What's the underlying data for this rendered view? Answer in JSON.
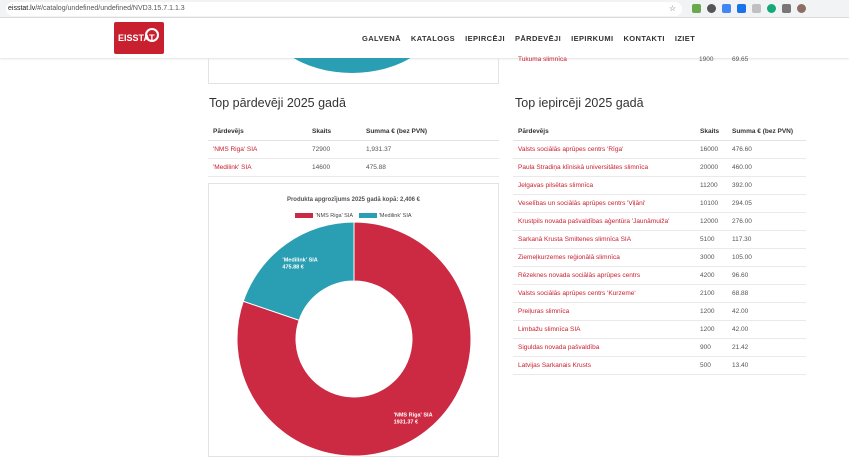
{
  "browser": {
    "url_host": "eisstat.lv",
    "url_path": "/#/catalog/undefined/undefined/NVD3.15.7.1.1.3"
  },
  "site": {
    "logo_text": "EISSTAT",
    "nav": [
      "GALVENĀ",
      "KATALOGS",
      "IEPIRCĒJI",
      "PĀRDEVĒJI",
      "IEPIRKUMI",
      "KONTAKTI",
      "IZIET"
    ]
  },
  "top_row": {
    "name": "Tukuma slimnīca",
    "count": "1900",
    "sum": "69.65"
  },
  "sellers": {
    "title": "Top pārdevēji 2025 gadā",
    "headers": [
      "Pārdevējs",
      "Skaits",
      "Summa € (bez PVN)"
    ],
    "rows": [
      [
        "'NMS Riga' SIA",
        "72900",
        "1,931.37"
      ],
      [
        "'Medilink' SIA",
        "14600",
        "475.88"
      ]
    ]
  },
  "buyers": {
    "title": "Top iepircēji 2025 gadā",
    "headers": [
      "Pārdevējs",
      "Skaits",
      "Summa € (bez PVN)"
    ],
    "rows": [
      [
        "Valsts sociālās aprūpes centrs 'Rīga'",
        "16000",
        "476.60"
      ],
      [
        "Paula Stradiņa klīniskā universitātes slimnīca",
        "20000",
        "460.00"
      ],
      [
        "Jelgavas pilsētas slimnīca",
        "11200",
        "392.00"
      ],
      [
        "Veselības un sociālās aprūpes centrs 'Viļāni'",
        "10100",
        "294.05"
      ],
      [
        "Krustpils novada pašvaldības aģentūra 'Jaunāmuiža'",
        "12000",
        "276.00"
      ],
      [
        "Sarkanā Krusta Smiltenes slimnīca SIA",
        "5100",
        "117.30"
      ],
      [
        "Ziemeļkurzemes reģionālā slimnīca",
        "3000",
        "105.00"
      ],
      [
        "Rēzeknes novada sociālās aprūpes centrs",
        "4200",
        "96.60"
      ],
      [
        "Valsts sociālās aprūpes centrs 'Kurzeme'",
        "2100",
        "68.88"
      ],
      [
        "Preiļuras slimnīca",
        "1200",
        "42.00"
      ],
      [
        "Limbažu slimnīca SIA",
        "1200",
        "42.00"
      ],
      [
        "Siguldas novada pašvaldība",
        "900",
        "21.42"
      ],
      [
        "Latvijas Sarkanais Krusts",
        "500",
        "13.40"
      ]
    ]
  },
  "chart_data": {
    "type": "pie",
    "title": "Produkta apgrozījums 2025 gadā kopā: 2,406 €",
    "categories": [
      "'NMS Riga' SIA",
      "'Medilink' SIA"
    ],
    "values": [
      1931.37,
      475.88
    ],
    "labels": [
      "1931.37 €",
      "475.88 €"
    ],
    "colors": [
      "#cc2943",
      "#2a9eb3"
    ],
    "donut": true,
    "legend": "top"
  }
}
